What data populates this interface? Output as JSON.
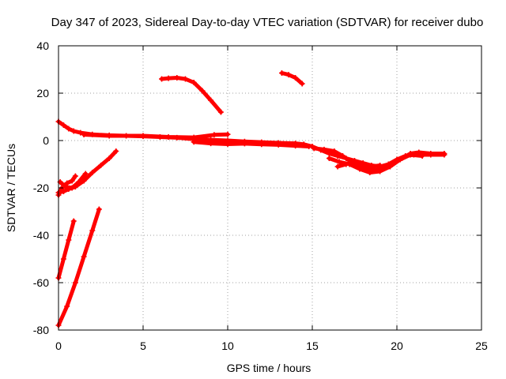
{
  "chart_data": {
    "type": "scatter",
    "title": "Day 347 of 2023, Sidereal Day-to-day VTEC variation (SDTVAR) for receiver dubo",
    "xlabel": "GPS time / hours",
    "ylabel": "SDTVAR / TECUs",
    "xlim": [
      0,
      25
    ],
    "ylim": [
      -80,
      40
    ],
    "xticks": [
      0,
      5,
      10,
      15,
      20,
      25
    ],
    "yticks": [
      -80,
      -60,
      -40,
      -20,
      0,
      20,
      40
    ],
    "grid": true,
    "colors": {
      "series": "#ff0000",
      "frame": "#000000",
      "grid": "#a0a0a0"
    },
    "series": [
      {
        "name": "arc-main",
        "points": [
          [
            0,
            8
          ],
          [
            0.3,
            6.5
          ],
          [
            0.6,
            5
          ],
          [
            0.9,
            4
          ],
          [
            1.3,
            3.3
          ],
          [
            2,
            2.6
          ],
          [
            3,
            2.2
          ],
          [
            4,
            2
          ],
          [
            5,
            1.8
          ],
          [
            6,
            1.5
          ],
          [
            7,
            1.2
          ],
          [
            8,
            0.6
          ],
          [
            9,
            0.3
          ],
          [
            10,
            0
          ],
          [
            11,
            -0.4
          ],
          [
            12,
            -0.7
          ],
          [
            13,
            -1
          ],
          [
            14,
            -1.2
          ],
          [
            14.5,
            -1.6
          ],
          [
            15,
            -2.5
          ],
          [
            15.5,
            -4
          ],
          [
            16,
            -5.5
          ],
          [
            16.5,
            -6.5
          ],
          [
            17,
            -7.5
          ],
          [
            17.5,
            -8.5
          ],
          [
            18,
            -9.5
          ],
          [
            18.5,
            -10.5
          ],
          [
            19,
            -11
          ],
          [
            19.5,
            -10
          ],
          [
            20,
            -8
          ],
          [
            20.5,
            -6.5
          ],
          [
            21,
            -6
          ],
          [
            22,
            -6
          ],
          [
            22.8,
            -6
          ]
        ]
      },
      {
        "name": "arc-upper-band",
        "points": [
          [
            1.5,
            2.5
          ],
          [
            3,
            2
          ],
          [
            5,
            2
          ],
          [
            6.5,
            1.5
          ],
          [
            8,
            1.3
          ],
          [
            9.2,
            2.4
          ],
          [
            10,
            2.6
          ]
        ]
      },
      {
        "name": "arc-lower-band",
        "points": [
          [
            8,
            -0.6
          ],
          [
            9,
            -1.2
          ],
          [
            10,
            -1.5
          ],
          [
            11,
            -1.3
          ],
          [
            12,
            -1.6
          ],
          [
            13,
            -1.8
          ],
          [
            14,
            -2.2
          ],
          [
            14.8,
            -2.5
          ]
        ]
      },
      {
        "name": "arc-tail-a",
        "points": [
          [
            15.1,
            -3.3
          ],
          [
            15.7,
            -3.8
          ],
          [
            16.3,
            -4.5
          ],
          [
            16.8,
            -6.5
          ],
          [
            17.3,
            -9
          ],
          [
            17.8,
            -10.5
          ],
          [
            18.3,
            -12
          ],
          [
            18.9,
            -12.5
          ],
          [
            19.3,
            -11.5
          ],
          [
            19.8,
            -9.5
          ],
          [
            20.3,
            -7.5
          ],
          [
            20.8,
            -5.5
          ],
          [
            21.3,
            -5
          ],
          [
            22,
            -5.5
          ],
          [
            22.8,
            -5.5
          ]
        ]
      },
      {
        "name": "arc-tail-b",
        "points": [
          [
            16,
            -7.5
          ],
          [
            16.6,
            -9
          ],
          [
            17.2,
            -10
          ],
          [
            17.8,
            -12
          ],
          [
            18.4,
            -13.5
          ],
          [
            19,
            -13
          ],
          [
            19.6,
            -11
          ],
          [
            20.2,
            -8
          ],
          [
            20.8,
            -6
          ],
          [
            21.5,
            -6.5
          ]
        ]
      },
      {
        "name": "arc-tail-c",
        "points": [
          [
            16.5,
            -11
          ],
          [
            17,
            -10
          ],
          [
            17.5,
            -9
          ],
          [
            18,
            -10
          ],
          [
            18.5,
            -11
          ],
          [
            19,
            -10.5
          ]
        ]
      },
      {
        "name": "arc-rise-a",
        "points": [
          [
            0,
            -22
          ],
          [
            0.3,
            -21.5
          ],
          [
            0.6,
            -20.5
          ],
          [
            1,
            -19.5
          ],
          [
            1.5,
            -17
          ],
          [
            2,
            -13.5
          ],
          [
            2.5,
            -10.5
          ],
          [
            3,
            -7.5
          ],
          [
            3.4,
            -4.5
          ]
        ]
      },
      {
        "name": "arc-rise-b",
        "points": [
          [
            0.1,
            -17.5
          ],
          [
            0.4,
            -19.5
          ],
          [
            0.8,
            -20
          ],
          [
            1.2,
            -17.5
          ],
          [
            1.6,
            -14
          ]
        ]
      },
      {
        "name": "arc-rise-c",
        "points": [
          [
            0,
            -23
          ],
          [
            0.2,
            -20
          ],
          [
            0.5,
            -18
          ],
          [
            0.8,
            -17
          ],
          [
            1,
            -15
          ]
        ]
      },
      {
        "name": "arc-steep-a",
        "points": [
          [
            0,
            -58
          ],
          [
            0.3,
            -50
          ],
          [
            0.6,
            -42
          ],
          [
            0.9,
            -34
          ]
        ]
      },
      {
        "name": "arc-steep-b",
        "points": [
          [
            0,
            -78
          ],
          [
            0.5,
            -70
          ],
          [
            1,
            -60
          ],
          [
            1.5,
            -49
          ],
          [
            2,
            -38
          ],
          [
            2.4,
            -29
          ]
        ]
      },
      {
        "name": "arc-peak",
        "points": [
          [
            6.1,
            26
          ],
          [
            6.5,
            26.3
          ],
          [
            7,
            26.5
          ],
          [
            7.5,
            26
          ],
          [
            8,
            24.5
          ],
          [
            8.5,
            21
          ],
          [
            9,
            17
          ],
          [
            9.6,
            12
          ]
        ]
      },
      {
        "name": "arc-high",
        "points": [
          [
            13.2,
            28.5
          ],
          [
            13.6,
            27.8
          ],
          [
            14,
            26.5
          ],
          [
            14.4,
            24
          ]
        ]
      }
    ]
  }
}
